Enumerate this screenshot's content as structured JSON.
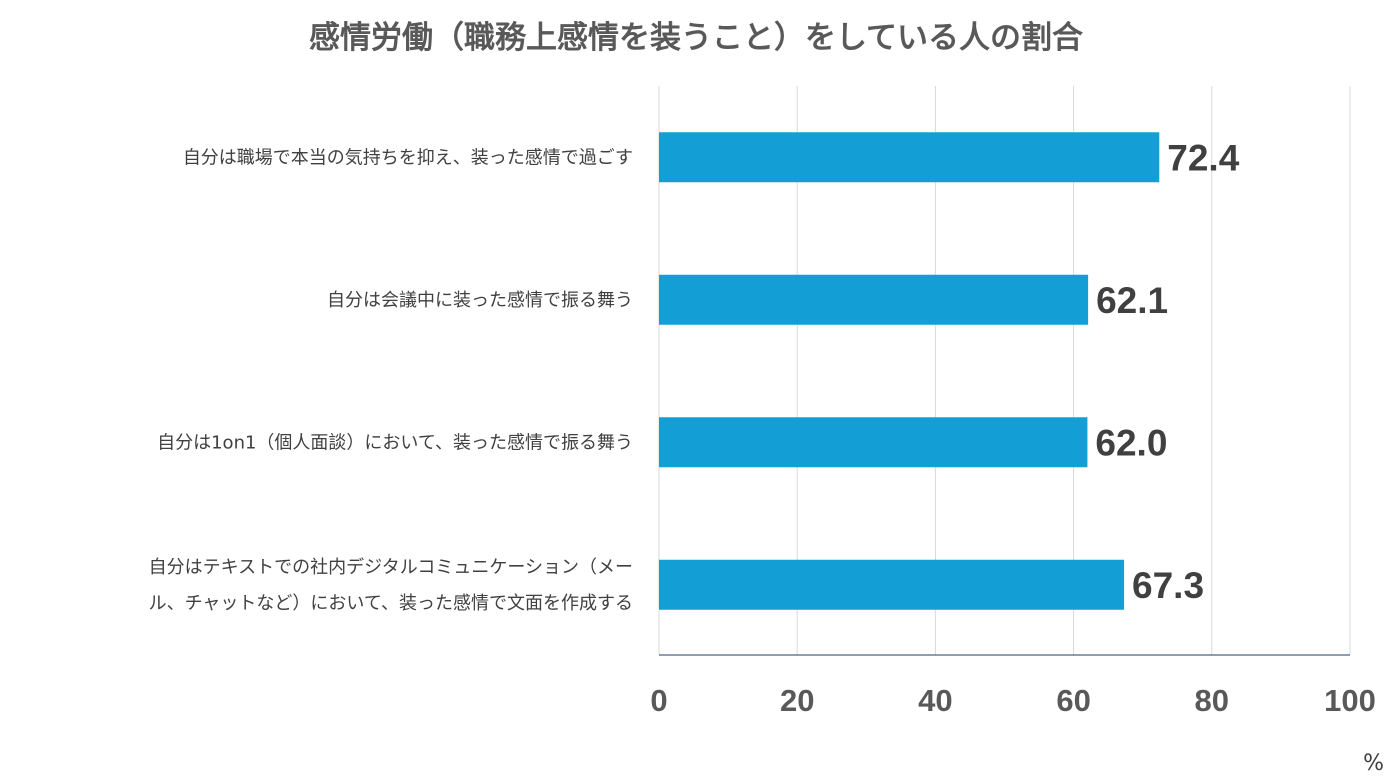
{
  "chart_data": {
    "type": "bar",
    "orientation": "horizontal",
    "title": "感情労働（職務上感情を装うこと）をしている人の割合",
    "categories": [
      [
        "自分は職場で本当の気持ちを抑え、装った感情で過ごす"
      ],
      [
        "自分は会議中に装った感情で振る舞う"
      ],
      [
        "自分は1on1（個人面談）において、装った感情で振る舞う"
      ],
      [
        "自分はテキストでの社内デジタルコミュニケーション（メー",
        "ル、チャットなど）において、装った感情で文面を作成する"
      ]
    ],
    "values": [
      72.4,
      62.1,
      62.0,
      67.3
    ],
    "data_labels": [
      "72.4",
      "62.1",
      "62.0",
      "67.3"
    ],
    "xlim": [
      0,
      100
    ],
    "ticks": [
      "0",
      "20",
      "40",
      "60",
      "80",
      "100"
    ],
    "unit": "%",
    "grid": true,
    "bar_color": "#139fd6"
  }
}
